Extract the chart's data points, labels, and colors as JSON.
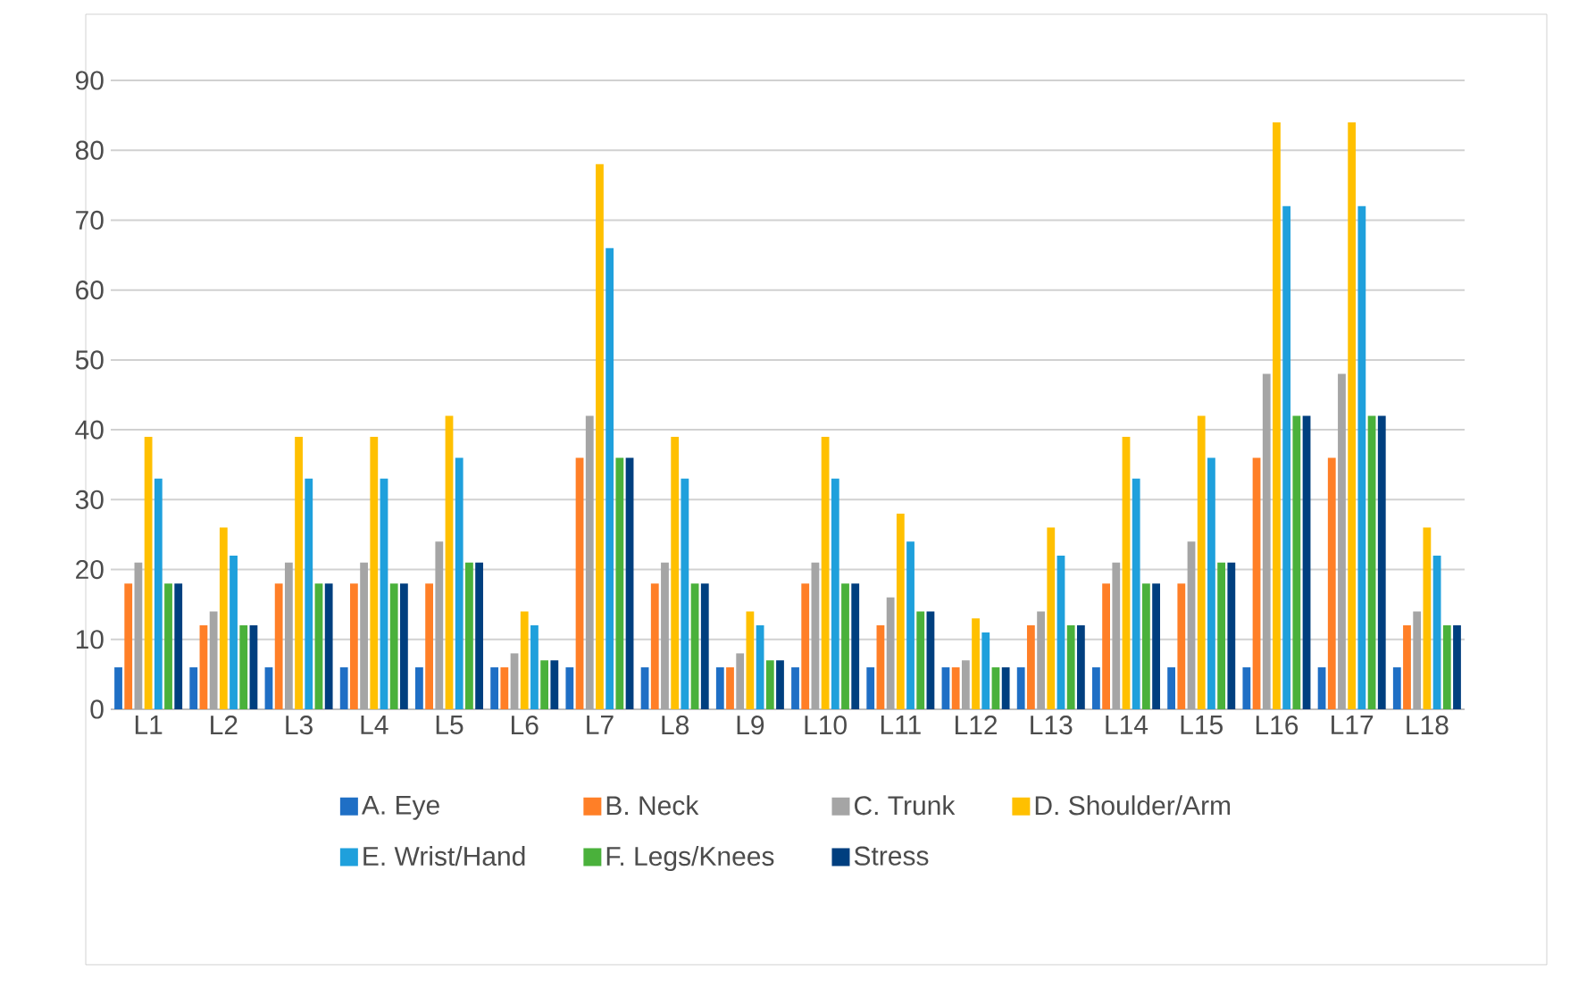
{
  "chart_data": {
    "type": "bar",
    "categories": [
      "L1",
      "L2",
      "L3",
      "L4",
      "L5",
      "L6",
      "L7",
      "L8",
      "L9",
      "L10",
      "L11",
      "L12",
      "L13",
      "L14",
      "L15",
      "L16",
      "L17",
      "L18"
    ],
    "series": [
      {
        "name": "A. Eye",
        "color": "#1f6fc5",
        "values": [
          6,
          6,
          6,
          6,
          6,
          6,
          6,
          6,
          6,
          6,
          6,
          6,
          6,
          6,
          6,
          6,
          6,
          6
        ]
      },
      {
        "name": "B. Neck",
        "color": "#ff7f27",
        "values": [
          18,
          12,
          18,
          18,
          18,
          6,
          36,
          18,
          6,
          18,
          12,
          6,
          12,
          18,
          18,
          36,
          36,
          12
        ]
      },
      {
        "name": "C. Trunk",
        "color": "#a5a5a5",
        "values": [
          21,
          14,
          21,
          21,
          24,
          8,
          42,
          21,
          8,
          21,
          16,
          7,
          14,
          21,
          24,
          48,
          48,
          14
        ]
      },
      {
        "name": "D. Shoulder/Arm",
        "color": "#ffc000",
        "values": [
          39,
          26,
          39,
          39,
          42,
          14,
          78,
          39,
          14,
          39,
          28,
          13,
          26,
          39,
          42,
          84,
          84,
          26
        ]
      },
      {
        "name": "E. Wrist/Hand",
        "color": "#1fa0dc",
        "values": [
          33,
          22,
          33,
          33,
          36,
          12,
          66,
          33,
          12,
          33,
          24,
          11,
          22,
          33,
          36,
          72,
          72,
          22
        ]
      },
      {
        "name": "F. Legs/Knees",
        "color": "#4ab13b",
        "values": [
          18,
          12,
          18,
          18,
          21,
          7,
          36,
          18,
          7,
          18,
          14,
          6,
          12,
          18,
          21,
          42,
          42,
          12
        ]
      },
      {
        "name": "Stress",
        "color": "#003f7f",
        "values": [
          18,
          12,
          18,
          18,
          21,
          7,
          36,
          18,
          7,
          18,
          14,
          6,
          12,
          18,
          21,
          42,
          42,
          12
        ]
      }
    ],
    "ylim": [
      0,
      90
    ],
    "yticks": [
      0,
      10,
      20,
      30,
      40,
      50,
      60,
      70,
      80,
      90
    ],
    "grid": "y",
    "legend": "bottom"
  }
}
